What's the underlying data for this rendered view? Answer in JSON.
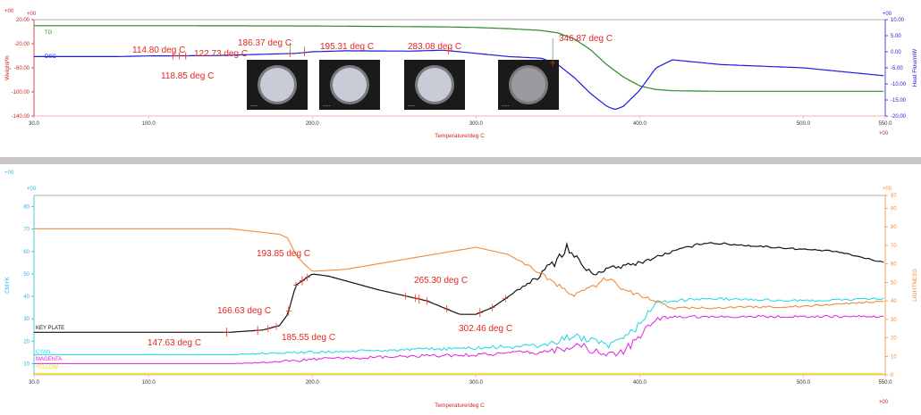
{
  "colors": {
    "tg": "#2a8a2a",
    "dsc": "#1a1ae0",
    "key": "#111111",
    "orange": "#f08a3a",
    "cyan": "#18d8e0",
    "magenta": "#e020e0",
    "yellow": "#e8e800",
    "annot": "#e4261f",
    "axis_left": "#cc2222",
    "axis_right": "#2222cc",
    "cyan_axis": "#22bbdd",
    "orange_axis": "#f08a3a",
    "grid": "#f3b0c0",
    "separator": "#c8c8c8"
  },
  "chart_data": [
    {
      "type": "line",
      "x_label": "Temperature/deg C",
      "x_ticks": [
        "30.0",
        "100.0",
        "200.0",
        "300.0",
        "400.0",
        "500.0",
        "550.0"
      ],
      "x_tick_values": [
        30,
        100,
        200,
        300,
        400,
        500,
        550
      ],
      "xlim": [
        30,
        550
      ],
      "left_axis": {
        "label": "Weight/%",
        "ticks": [
          "20.00",
          "-20.00",
          "-60.00",
          "-100.00",
          "-140.00"
        ],
        "tick_values": [
          20,
          -20,
          -60,
          -100,
          -140
        ],
        "ylim": [
          -140,
          20
        ],
        "top_marker": "+00"
      },
      "right_axis": {
        "label": "Heat Flow/mW",
        "ticks": [
          "10.00",
          "5.00",
          "0.00",
          "-5.00",
          "-10.00",
          "-15.00",
          "-20.00"
        ],
        "tick_values": [
          10,
          5,
          0,
          -5,
          -10,
          -15,
          -20
        ],
        "ylim": [
          -20,
          10
        ],
        "top_marker": "+00"
      },
      "corner_marker": "+00",
      "series": [
        {
          "name": "TG",
          "axis": "left",
          "x": [
            30,
            100,
            200,
            280,
            300,
            320,
            340,
            350,
            360,
            370,
            380,
            390,
            400,
            410,
            420,
            450,
            500,
            550
          ],
          "y": [
            10,
            10,
            9.5,
            8,
            7,
            5,
            2,
            -2,
            -12,
            -30,
            -55,
            -75,
            -90,
            -96,
            -98,
            -99,
            -99,
            -99
          ]
        },
        {
          "name": "DSC",
          "axis": "right",
          "x": [
            30,
            80,
            100,
            140,
            190,
            200,
            220,
            260,
            280,
            300,
            320,
            340,
            350,
            360,
            370,
            380,
            385,
            390,
            400,
            410,
            420,
            430,
            450,
            500,
            550
          ],
          "y": [
            -1.5,
            -1.5,
            -1.3,
            -1.2,
            -0.5,
            0,
            0.3,
            0.2,
            0.5,
            -0.5,
            -1.5,
            -2,
            -4,
            -8,
            -13,
            -17,
            -18,
            -17,
            -12,
            -5,
            -2.5,
            -3,
            -4,
            -5,
            -7.5
          ]
        }
      ],
      "annotations": [
        {
          "label": "114.80 deg C",
          "x": 114.8
        },
        {
          "label": "118.85 deg C",
          "x": 118.85
        },
        {
          "label": "122.73 deg C",
          "x": 122.73
        },
        {
          "label": "186.37 deg C",
          "x": 186.37
        },
        {
          "label": "195.31 deg C",
          "x": 195.31
        },
        {
          "label": "283.08 deg C",
          "x": 283.08
        },
        {
          "label": "346.87 deg C",
          "x": 346.87
        }
      ],
      "thumbnails": [
        "sample image at 186.37 deg C",
        "sample image at 195.31 deg C",
        "sample image at 283.08 deg C",
        "sample image at 346.87 deg C"
      ]
    },
    {
      "type": "line",
      "x_label": "Temperature/deg C",
      "x_ticks": [
        "30.0",
        "100.0",
        "200.0",
        "300.0",
        "400.0",
        "500.0",
        "550.0"
      ],
      "x_tick_values": [
        30,
        100,
        200,
        300,
        400,
        500,
        550
      ],
      "xlim": [
        30,
        550
      ],
      "left_axis": {
        "label": "CMYK",
        "ticks": [
          "80",
          "70",
          "60",
          "50",
          "40",
          "30",
          "20",
          "10"
        ],
        "tick_values": [
          80,
          70,
          60,
          50,
          40,
          30,
          20,
          10
        ],
        "ylim": [
          5,
          85
        ],
        "top_marker": "+00"
      },
      "right_axis": {
        "label": "LIGHTNESS",
        "ticks": [
          "97",
          "90",
          "80",
          "70",
          "60",
          "50",
          "40",
          "30",
          "20",
          "10",
          "0"
        ],
        "tick_values": [
          97,
          90,
          80,
          70,
          60,
          50,
          40,
          30,
          20,
          10,
          0
        ],
        "ylim": [
          0,
          97
        ],
        "top_marker": "+00"
      },
      "corner_marker": "+00",
      "series": [
        {
          "name": "KEY PLATE",
          "axis": "left",
          "x": [
            30,
            100,
            150,
            170,
            180,
            185,
            190,
            200,
            210,
            240,
            270,
            290,
            300,
            310,
            320,
            340,
            350,
            355,
            360,
            370,
            380,
            400,
            420,
            440,
            480,
            520,
            550
          ],
          "y": [
            24,
            24,
            24,
            25,
            27,
            32,
            45,
            50,
            49,
            43,
            38,
            32,
            32,
            35,
            40,
            50,
            57,
            62,
            58,
            50,
            52,
            55,
            60,
            64,
            62,
            60,
            55
          ],
          "noise": [
            0,
            0,
            0,
            0,
            0,
            0,
            0,
            0,
            0,
            0,
            0,
            0,
            0,
            0,
            0,
            1.5,
            2.5,
            2.5,
            2,
            1.5,
            1.2,
            0.8,
            0.6,
            0.5,
            0.4,
            0.3,
            0.3
          ]
        },
        {
          "name": "LIGHTNESS",
          "axis": "right",
          "x": [
            30,
            150,
            170,
            180,
            185,
            190,
            195,
            200,
            220,
            260,
            280,
            300,
            320,
            340,
            350,
            360,
            370,
            380,
            390,
            400,
            410,
            420,
            500,
            550
          ],
          "y": [
            79,
            79,
            77,
            76,
            74,
            65,
            60,
            56,
            57,
            63,
            66,
            69,
            65,
            55,
            48,
            43,
            47,
            52,
            47,
            43,
            40,
            36,
            37,
            40
          ],
          "noise": [
            0,
            0,
            0,
            0,
            0,
            0,
            0,
            0,
            0,
            0,
            0,
            0,
            0,
            1.2,
            1.5,
            1.5,
            1.5,
            1.5,
            1.5,
            1.2,
            0.8,
            0.6,
            0.5,
            0.5
          ]
        },
        {
          "name": "CYAN",
          "axis": "left",
          "x": [
            30,
            100,
            150,
            185,
            200,
            250,
            300,
            340,
            355,
            360,
            370,
            380,
            390,
            400,
            410,
            420,
            440,
            500,
            550
          ],
          "y": [
            14,
            14,
            14,
            15,
            15,
            16,
            17,
            18,
            21,
            23,
            20,
            18,
            20,
            28,
            37,
            38,
            39,
            38,
            39
          ],
          "noise": [
            0,
            0,
            0,
            0.6,
            0.6,
            0.6,
            0.8,
            1.2,
            1.8,
            2,
            1.8,
            1.5,
            2,
            2,
            1,
            0.6,
            0.6,
            0.5,
            0.5
          ]
        },
        {
          "name": "MAGENTA",
          "axis": "left",
          "x": [
            30,
            100,
            150,
            185,
            200,
            250,
            300,
            340,
            355,
            360,
            370,
            380,
            390,
            400,
            410,
            420,
            440,
            500,
            550
          ],
          "y": [
            10,
            10,
            10,
            11,
            12,
            13,
            14,
            15,
            17,
            19,
            16,
            14,
            15,
            22,
            30,
            31,
            31,
            31,
            31
          ],
          "noise": [
            0,
            0,
            0,
            0.6,
            0.6,
            0.6,
            0.8,
            1.2,
            1.8,
            2,
            1.8,
            1.5,
            2,
            2,
            1,
            0.6,
            0.6,
            0.5,
            0.5
          ]
        },
        {
          "name": "YELLOW",
          "axis": "left",
          "x": [
            30,
            550
          ],
          "y": [
            5.5,
            5.5
          ],
          "noise": [
            0,
            0
          ]
        }
      ],
      "legend_labels": [
        "KEY PLATE",
        "CYAN",
        "MAGENTA",
        "YELLOW"
      ],
      "annotations": [
        {
          "label": "147.63 deg C",
          "x": 147.63
        },
        {
          "label": "166.63 deg C",
          "x": 166.63
        },
        {
          "label": "185.55 deg C",
          "x": 185.55
        },
        {
          "label": "193.85 deg C",
          "x": 193.85
        },
        {
          "label": "265.30 deg C",
          "x": 265.3
        },
        {
          "label": "302.46 deg C",
          "x": 302.46
        }
      ]
    }
  ]
}
